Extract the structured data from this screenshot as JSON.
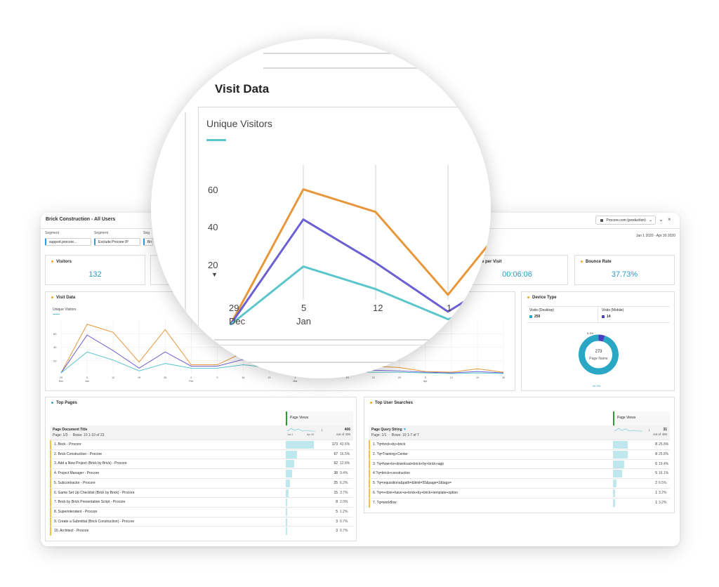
{
  "header": {
    "title": "Brick Construction - All Users",
    "report_suite": "Procore.com (production)",
    "date_range": "Jan 1 2020 - Apr 30 2020"
  },
  "segments": [
    {
      "label": "Segment",
      "value": "support.procore..."
    },
    {
      "label": "Segment",
      "value": "Exclude Procore IP"
    },
    {
      "label": "Seg",
      "value": "Bri"
    }
  ],
  "kpis": {
    "visitors": {
      "title": "Visitors",
      "value": "132"
    },
    "time_per_visit": {
      "title": "ime per Visit",
      "value": "00:06:06"
    },
    "bounce_rate": {
      "title": "Bounce Rate",
      "value": "37.73%"
    }
  },
  "visit_data": {
    "title": "Visit Data",
    "subtitle": "Unique Visitors"
  },
  "chart_data": [
    {
      "type": "line",
      "title": "Visit Data",
      "subtitle": "Unique Visitors",
      "x": [
        "29 Dec",
        "5 Jan",
        "12",
        "19",
        "26",
        "2 Feb",
        "9",
        "16",
        "23",
        "1 Mar",
        "8",
        "15",
        "22",
        "29",
        "5 Apr",
        "12",
        "19",
        "26"
      ],
      "ylim": [
        0,
        80
      ],
      "yticks": [
        "20",
        "40",
        "60"
      ],
      "series": [
        {
          "color": "#e8963a",
          "values": [
            2,
            74,
            62,
            18,
            66,
            14,
            14,
            32,
            28,
            22,
            16,
            10,
            12,
            10,
            4,
            3,
            8,
            3
          ]
        },
        {
          "color": "#6b5fd3",
          "values": [
            2,
            58,
            35,
            9,
            33,
            12,
            12,
            22,
            18,
            14,
            10,
            7,
            6,
            5,
            3,
            2,
            4,
            2
          ]
        },
        {
          "color": "#5bc5cc",
          "values": [
            2,
            33,
            21,
            5,
            16,
            9,
            9,
            14,
            10,
            8,
            6,
            4,
            3,
            3,
            2,
            1,
            2,
            1
          ]
        }
      ]
    },
    {
      "type": "pie",
      "title": "Device Type",
      "center_value": "273",
      "center_label": "Page Name",
      "legend": [
        {
          "label": "Visits (Desktop)",
          "value": "259",
          "color": "#2aa7c4"
        },
        {
          "label": "Visits (Mobile)",
          "value": "14",
          "color": "#4b3fbf"
        }
      ],
      "slices": [
        {
          "label": "Visits (Desktop)",
          "pct": 94.9,
          "color": "#2aa7c4",
          "display": "94.9%"
        },
        {
          "label": "Visits (Mobile)",
          "pct": 5.1,
          "color": "#4b3fbf",
          "display": "5.1%"
        }
      ]
    }
  ],
  "top_pages": {
    "title": "Top Pages",
    "metric_header": "Page Views",
    "dim_header": "Page Document Title",
    "pagination": "Page: 1/3",
    "rows_label": "Rows: 10   1-10 of 23",
    "total": "406",
    "total_sub": "out of 406",
    "spark_start": "Jan 1",
    "spark_end": "Apr 30",
    "rows": [
      {
        "label": "1. Brick - Procore",
        "value": "173",
        "pct": "42.6%",
        "fraction": 0.426
      },
      {
        "label": "2. Brick Construction - Procore",
        "value": "67",
        "pct": "16.5%",
        "fraction": 0.165
      },
      {
        "label": "3. Add a New Project (Brick by Brick) - Procore",
        "value": "52",
        "pct": "12.8%",
        "fraction": 0.128
      },
      {
        "label": "4. Project Manager - Procore",
        "value": "38",
        "pct": "9.4%",
        "fraction": 0.094
      },
      {
        "label": "5. Subcontractor - Procore",
        "value": "25",
        "pct": "6.2%",
        "fraction": 0.062
      },
      {
        "label": "6. Game Set Up Checklist (Brick by Brick) - Procore",
        "value": "15",
        "pct": "3.7%",
        "fraction": 0.037
      },
      {
        "label": "7. Brick by Brick Presentation Script - Procore",
        "value": "8",
        "pct": "2.0%",
        "fraction": 0.02
      },
      {
        "label": "8. Superintendent - Procore",
        "value": "5",
        "pct": "1.2%",
        "fraction": 0.012
      },
      {
        "label": "9. Create a Submittal (Brick Construction) - Procore",
        "value": "3",
        "pct": "0.7%",
        "fraction": 0.007
      },
      {
        "label": "10. Architect - Procore",
        "value": "3",
        "pct": "0.7%",
        "fraction": 0.007
      }
    ]
  },
  "top_searches": {
    "title": "Top User Searches",
    "metric_header": "Page Views",
    "dim_header": "Page Query String",
    "pagination": "Page: 1/1",
    "rows_label": "Rows: 10   1-7 of 7",
    "total": "31",
    "total_sub": "out of 406",
    "rows": [
      {
        "label": "1. ?q=brick+by+brick",
        "value": "8",
        "pct": "25.8%",
        "fraction": 0.258
      },
      {
        "label": "2. ?q=Training+Center",
        "value": "8",
        "pct": "25.8%",
        "fraction": 0.258
      },
      {
        "label": "3. ?q=how+to+download+brick+by+brick+app",
        "value": "6",
        "pct": "19.4%",
        "fraction": 0.194
      },
      {
        "label": "4.?q=brick+construction",
        "value": "5",
        "pct": "16.1%",
        "fraction": 0.161
      },
      {
        "label": "5. ?q=requisitions&path=&limit=55&page=2&tags=",
        "value": "2",
        "pct": "6.5%",
        "fraction": 0.065
      },
      {
        "label": "6. ?q=i+dont+have+a+brick+by+brick+template+option",
        "value": "1",
        "pct": "3.2%",
        "fraction": 0.032
      },
      {
        "label": "7. ?q=workflow",
        "value": "1",
        "pct": "3.2%",
        "fraction": 0.032
      }
    ]
  },
  "magnifier": {
    "title": "Visit Data",
    "subtitle": "Unique Visitors",
    "y_ticks": [
      "60",
      "40",
      "20"
    ],
    "x_ticks": [
      {
        "day": "29",
        "month": "Dec"
      },
      {
        "day": "5",
        "month": "Jan"
      },
      {
        "day": "12",
        "month": ""
      },
      {
        "day": "1",
        "month": ""
      }
    ]
  },
  "colors": {
    "accent": "#2a9bc9",
    "orange": "#e8963a",
    "purple": "#6b5fd3",
    "teal": "#5bc5cc"
  }
}
